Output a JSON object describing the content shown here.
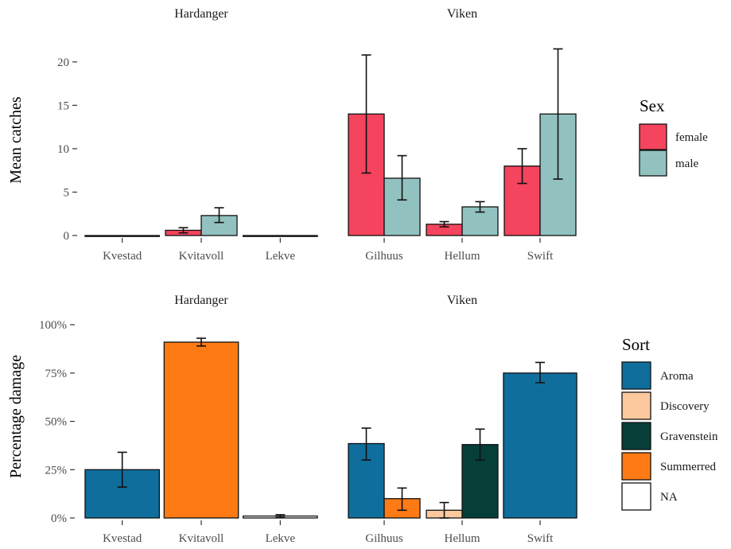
{
  "chart_data": [
    {
      "type": "bar",
      "ylabel": "Mean catches",
      "ylim": [
        0,
        22
      ],
      "yticks": [
        0,
        5,
        10,
        15,
        20
      ],
      "ytick_labels": [
        "0",
        "5",
        "10",
        "15",
        "20"
      ],
      "legend": {
        "title": "Sex",
        "position": "right",
        "entries": [
          {
            "label": "female",
            "color": "#f4445e"
          },
          {
            "label": "male",
            "color": "#92c2bf"
          }
        ]
      },
      "panels": [
        {
          "title": "Hardanger",
          "categories": [
            "Kvestad",
            "Kvitavoll",
            "Lekve"
          ],
          "bars": [
            {
              "category": "Kvestad",
              "group": "",
              "value": 0,
              "color": "#f4445e"
            },
            {
              "category": "Kvitavoll",
              "group": "female",
              "value": 0.6,
              "err": [
                0.3,
                0.9
              ],
              "color": "#f4445e"
            },
            {
              "category": "Kvitavoll",
              "group": "male",
              "value": 2.3,
              "err": [
                1.5,
                3.2
              ],
              "color": "#92c2bf"
            },
            {
              "category": "Lekve",
              "group": "",
              "value": 0,
              "color": "#f4445e"
            }
          ]
        },
        {
          "title": "Viken",
          "categories": [
            "Gilhuus",
            "Hellum",
            "Swift"
          ],
          "bars": [
            {
              "category": "Gilhuus",
              "group": "female",
              "value": 14,
              "err": [
                7.2,
                20.8
              ],
              "color": "#f4445e"
            },
            {
              "category": "Gilhuus",
              "group": "male",
              "value": 6.6,
              "err": [
                4.1,
                9.2
              ],
              "color": "#92c2bf"
            },
            {
              "category": "Hellum",
              "group": "female",
              "value": 1.3,
              "err": [
                1.0,
                1.6
              ],
              "color": "#f4445e"
            },
            {
              "category": "Hellum",
              "group": "male",
              "value": 3.3,
              "err": [
                2.7,
                3.9
              ],
              "color": "#92c2bf"
            },
            {
              "category": "Swift",
              "group": "female",
              "value": 8,
              "err": [
                6.0,
                10.0
              ],
              "color": "#f4445e"
            },
            {
              "category": "Swift",
              "group": "male",
              "value": 14,
              "err": [
                6.5,
                21.5
              ],
              "color": "#92c2bf"
            }
          ]
        }
      ]
    },
    {
      "type": "bar",
      "ylabel": "Percentage damage",
      "ylim": [
        0,
        105
      ],
      "yticks": [
        0,
        25,
        50,
        75,
        100
      ],
      "ytick_labels": [
        "0%",
        "25%",
        "50%",
        "75%",
        "100%"
      ],
      "legend": {
        "title": "Sort",
        "position": "right",
        "entries": [
          {
            "label": "Aroma",
            "color": "#0f6e9c"
          },
          {
            "label": "Discovery",
            "color": "#fcc99e"
          },
          {
            "label": "Gravenstein",
            "color": "#063f37"
          },
          {
            "label": "Summerred",
            "color": "#fe7a15"
          },
          {
            "label": "NA",
            "color": "#ffffff"
          }
        ]
      },
      "panels": [
        {
          "title": "Hardanger",
          "categories": [
            "Kvestad",
            "Kvitavoll",
            "Lekve"
          ],
          "bars": [
            {
              "category": "Kvestad",
              "group": "Aroma",
              "value": 25,
              "err": [
                16,
                34
              ],
              "color": "#0f6e9c"
            },
            {
              "category": "Kvitavoll",
              "group": "Summerred",
              "value": 91,
              "err": [
                89,
                93
              ],
              "color": "#fe7a15"
            },
            {
              "category": "Lekve",
              "group": "NA",
              "value": 1,
              "err": [
                0.3,
                1.7
              ],
              "color": "#ffffff"
            }
          ]
        },
        {
          "title": "Viken",
          "categories": [
            "Gilhuus",
            "Hellum",
            "Swift"
          ],
          "bars": [
            {
              "category": "Gilhuus",
              "group": "Aroma",
              "value": 38.5,
              "err": [
                30,
                46.5
              ],
              "color": "#0f6e9c"
            },
            {
              "category": "Gilhuus",
              "group": "Summerred",
              "value": 10,
              "err": [
                4,
                15.5
              ],
              "color": "#fe7a15"
            },
            {
              "category": "Hellum",
              "group": "Discovery",
              "value": 4,
              "err": [
                0,
                8
              ],
              "color": "#fcc99e"
            },
            {
              "category": "Hellum",
              "group": "Gravenstein",
              "value": 38,
              "err": [
                30,
                46
              ],
              "color": "#063f37"
            },
            {
              "category": "Swift",
              "group": "Aroma",
              "value": 75,
              "err": [
                70,
                80.5
              ],
              "color": "#0f6e9c"
            }
          ]
        }
      ]
    }
  ]
}
